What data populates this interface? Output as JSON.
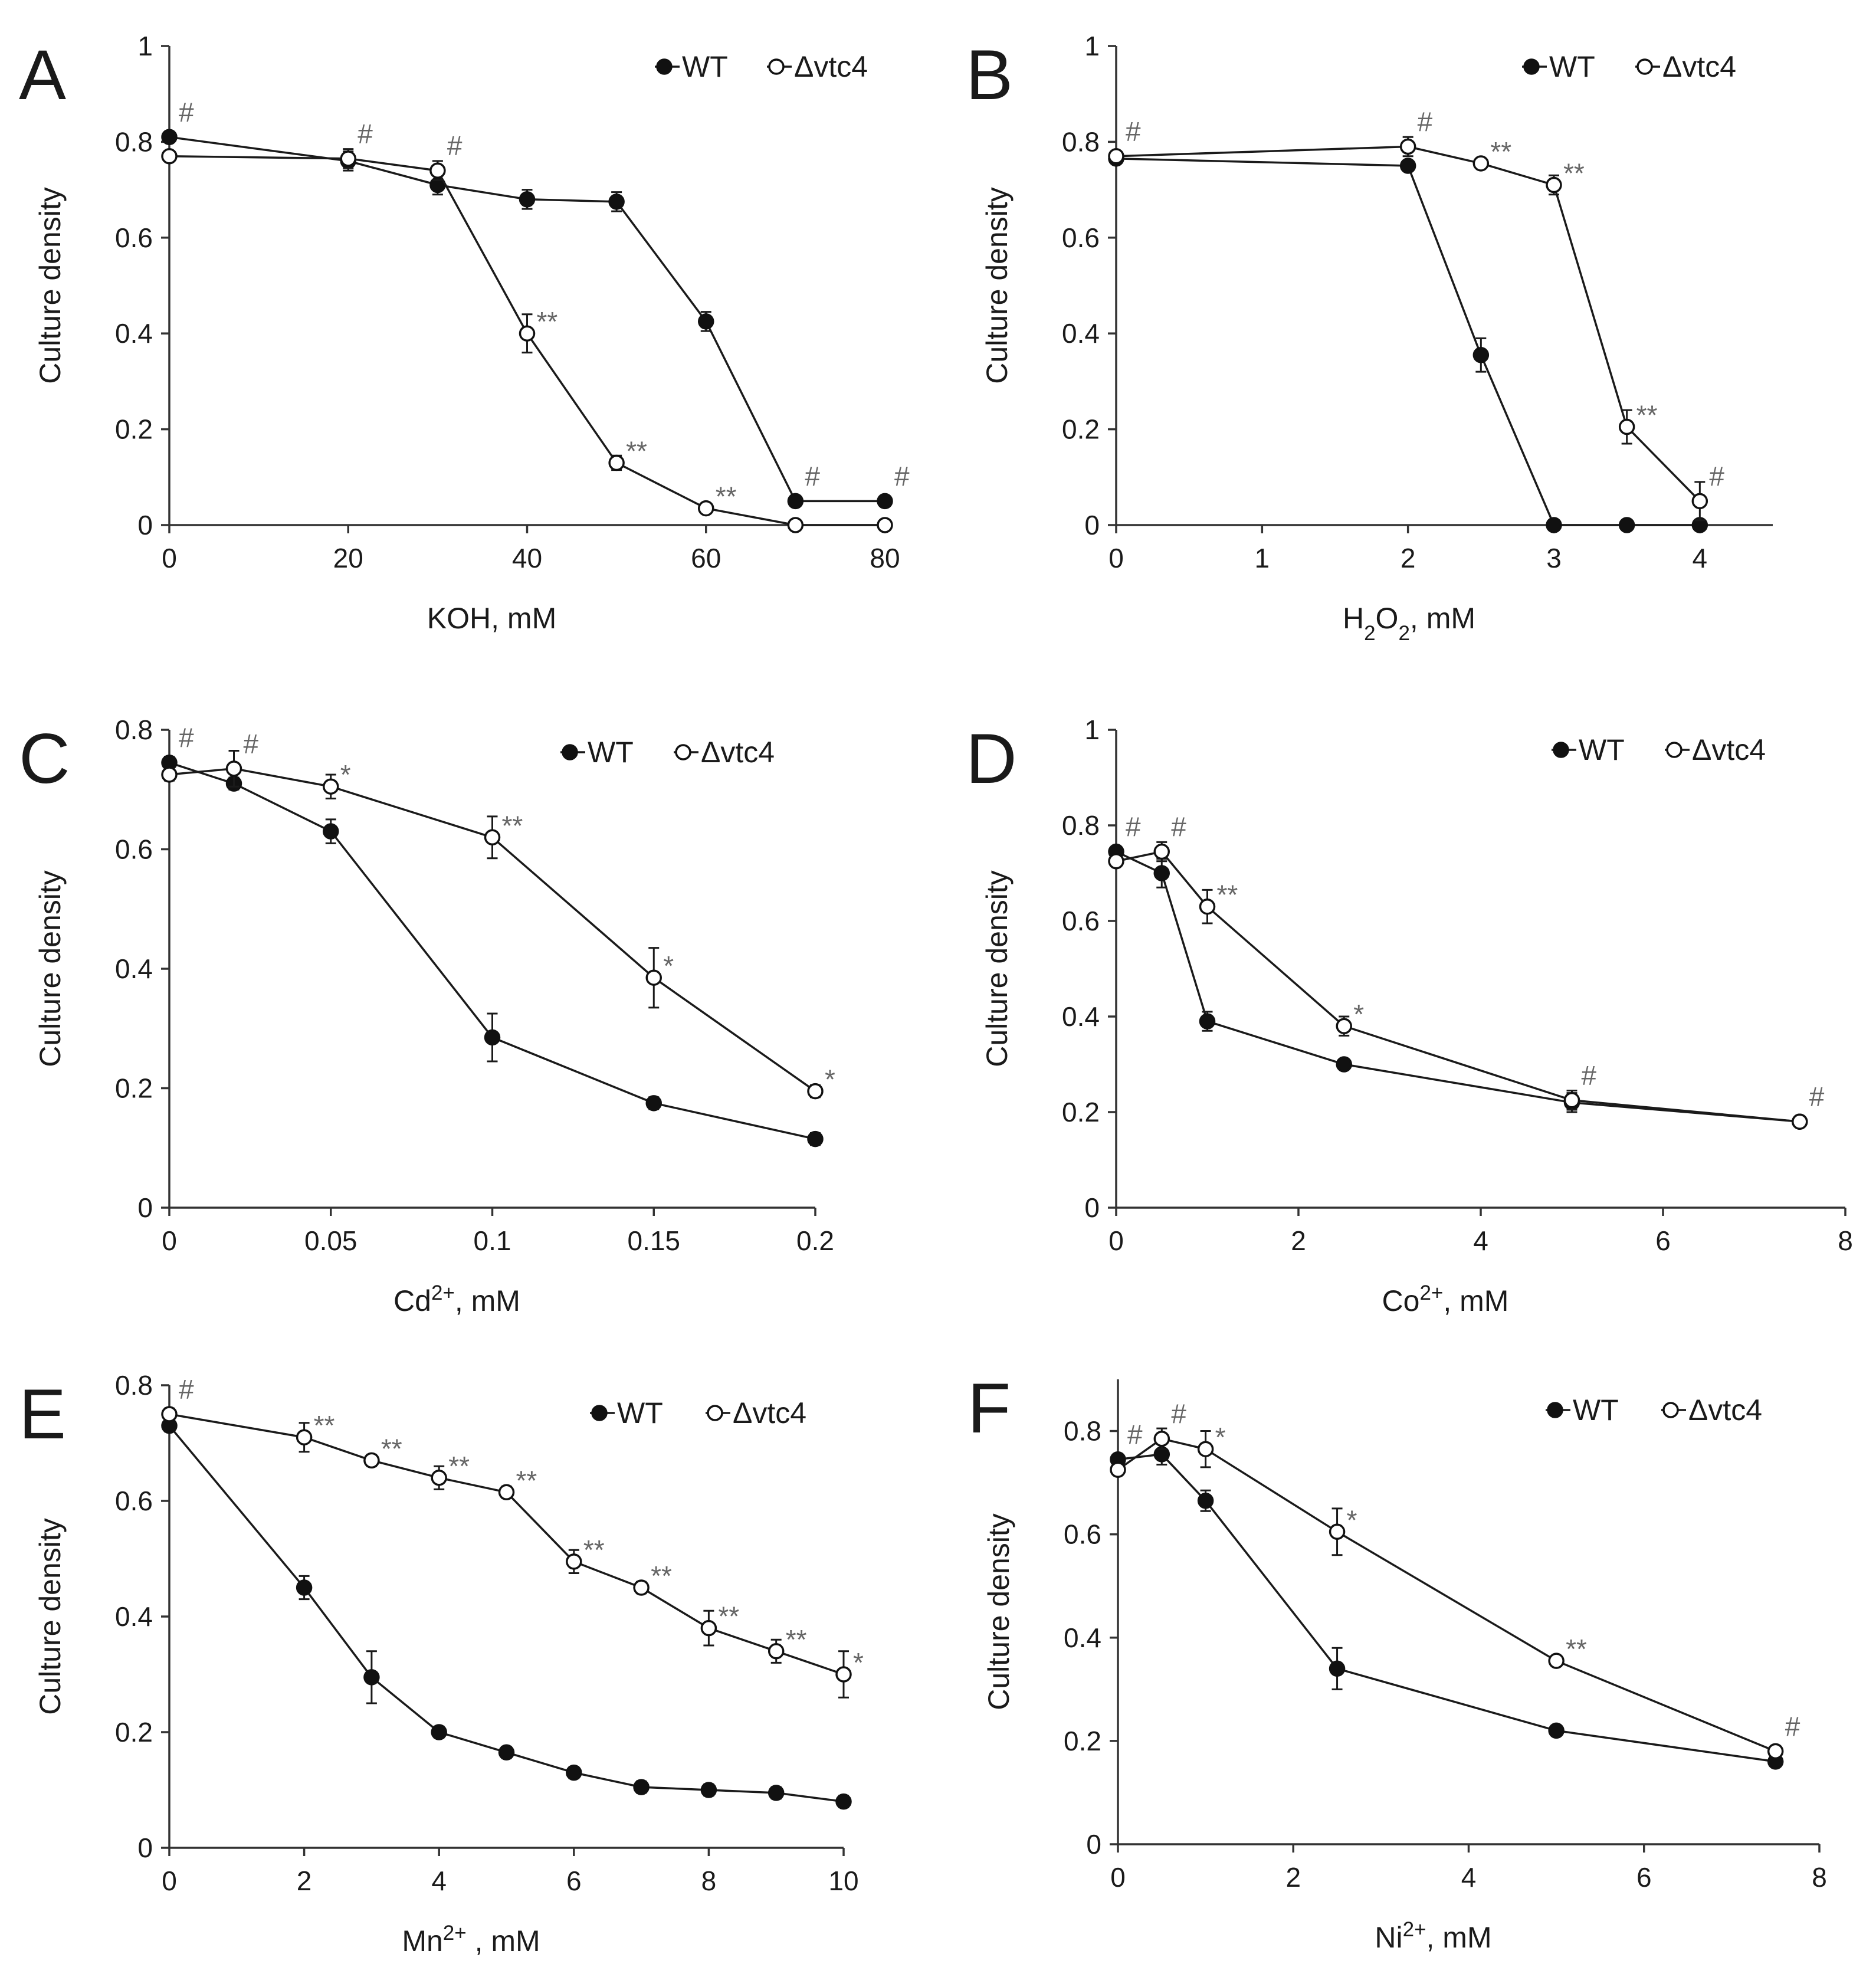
{
  "legend": {
    "wt": "WT",
    "mut": "Δvtc4"
  },
  "chart_data": [
    {
      "panel": "A",
      "type": "line",
      "xlabel": "KOH, mM",
      "ylabel": "Culture density",
      "xlim": [
        0,
        80
      ],
      "ylim": [
        0,
        1
      ],
      "xticks": [
        0,
        20,
        40,
        60,
        80
      ],
      "xtick_labels": [
        "0",
        "20",
        "40",
        "60",
        "80"
      ],
      "yticks": [
        0,
        0.2,
        0.4,
        0.6,
        0.8,
        1
      ],
      "ytick_labels": [
        "0",
        "0.2",
        "0.4",
        "0.6",
        "0.8",
        "1"
      ],
      "series": [
        {
          "name": "WT",
          "marker": "filled",
          "x": [
            0,
            20,
            30,
            40,
            50,
            60,
            70,
            80
          ],
          "y": [
            0.81,
            0.76,
            0.71,
            0.68,
            0.675,
            0.425,
            0.05,
            0.05
          ],
          "err": [
            0.01,
            0.02,
            0.02,
            0.02,
            0.02,
            0.02,
            0.01,
            0.01
          ]
        },
        {
          "name": "Δvtc4",
          "marker": "open",
          "x": [
            0,
            20,
            30,
            40,
            50,
            60,
            70,
            80
          ],
          "y": [
            0.77,
            0.765,
            0.74,
            0.4,
            0.13,
            0.035,
            0.0,
            0.0
          ],
          "err": [
            0.01,
            0.02,
            0.02,
            0.04,
            0.015,
            0.01,
            0.005,
            0.005
          ]
        }
      ],
      "annotations": [
        {
          "x": 0,
          "y": 0.81,
          "text": "#"
        },
        {
          "x": 20,
          "y": 0.765,
          "text": "#"
        },
        {
          "x": 30,
          "y": 0.74,
          "text": "#"
        },
        {
          "x": 40,
          "y": 0.4,
          "text": "**"
        },
        {
          "x": 50,
          "y": 0.13,
          "text": "**"
        },
        {
          "x": 60,
          "y": 0.035,
          "text": "**"
        },
        {
          "x": 70,
          "y": 0.05,
          "text": "#"
        },
        {
          "x": 80,
          "y": 0.05,
          "text": "#"
        }
      ]
    },
    {
      "panel": "B",
      "type": "line",
      "xlabel": "H₂O₂, mM",
      "ylabel": "Culture density",
      "xlim": [
        0,
        4.5
      ],
      "ylim": [
        0,
        1
      ],
      "xticks": [
        0,
        1,
        2,
        3,
        4
      ],
      "xtick_labels": [
        "0",
        "1",
        "2",
        "3",
        "4"
      ],
      "yticks": [
        0,
        0.2,
        0.4,
        0.6,
        0.8,
        1
      ],
      "ytick_labels": [
        "0",
        "0.2",
        "0.4",
        "0.6",
        "0.8",
        "1"
      ],
      "series": [
        {
          "name": "WT",
          "marker": "filled",
          "x": [
            0,
            2,
            2.5,
            3,
            3.5,
            4
          ],
          "y": [
            0.765,
            0.75,
            0.355,
            0.0,
            0.0,
            0.0
          ],
          "err": [
            0.01,
            0.01,
            0.035,
            0.0,
            0.0,
            0.0
          ]
        },
        {
          "name": "Δvtc4",
          "marker": "open",
          "x": [
            0,
            2,
            2.5,
            3,
            3.5,
            4
          ],
          "y": [
            0.77,
            0.79,
            0.755,
            0.71,
            0.205,
            0.05
          ],
          "err": [
            0.01,
            0.02,
            0.01,
            0.02,
            0.035,
            0.04
          ]
        }
      ],
      "annotations": [
        {
          "x": 0,
          "y": 0.77,
          "text": "#"
        },
        {
          "x": 2,
          "y": 0.79,
          "text": "#"
        },
        {
          "x": 2.5,
          "y": 0.755,
          "text": "**"
        },
        {
          "x": 3,
          "y": 0.71,
          "text": "**"
        },
        {
          "x": 3.5,
          "y": 0.205,
          "text": "**"
        },
        {
          "x": 4,
          "y": 0.05,
          "text": "#"
        }
      ]
    },
    {
      "panel": "C",
      "type": "line",
      "xlabel": "Cd²⁺, mM",
      "ylabel": "Culture density",
      "xlim": [
        0,
        0.2
      ],
      "ylim": [
        0,
        0.8
      ],
      "xticks": [
        0,
        0.05,
        0.1,
        0.15,
        0.2
      ],
      "xtick_labels": [
        "0",
        "0.05",
        "0.1",
        "0.15",
        "0.2"
      ],
      "yticks": [
        0,
        0.2,
        0.4,
        0.6,
        0.8
      ],
      "ytick_labels": [
        "0",
        "0.2",
        "0.4",
        "0.6",
        "0.8"
      ],
      "series": [
        {
          "name": "WT",
          "marker": "filled",
          "x": [
            0,
            0.02,
            0.05,
            0.1,
            0.15,
            0.2
          ],
          "y": [
            0.745,
            0.71,
            0.63,
            0.285,
            0.175,
            0.115
          ],
          "err": [
            0.01,
            0.01,
            0.02,
            0.04,
            0.01,
            0.01
          ]
        },
        {
          "name": "Δvtc4",
          "marker": "open",
          "x": [
            0,
            0.02,
            0.05,
            0.1,
            0.15,
            0.2
          ],
          "y": [
            0.725,
            0.735,
            0.705,
            0.62,
            0.385,
            0.195
          ],
          "err": [
            0.01,
            0.03,
            0.02,
            0.035,
            0.05,
            0.01
          ]
        }
      ],
      "annotations": [
        {
          "x": 0,
          "y": 0.745,
          "text": "#"
        },
        {
          "x": 0.02,
          "y": 0.735,
          "text": "#"
        },
        {
          "x": 0.05,
          "y": 0.705,
          "text": "*"
        },
        {
          "x": 0.1,
          "y": 0.62,
          "text": "**"
        },
        {
          "x": 0.15,
          "y": 0.385,
          "text": "*"
        },
        {
          "x": 0.2,
          "y": 0.195,
          "text": "*"
        }
      ]
    },
    {
      "panel": "D",
      "type": "line",
      "xlabel": "Co²⁺, mM",
      "ylabel": "Culture density",
      "xlim": [
        0,
        8
      ],
      "ylim": [
        0,
        1
      ],
      "xticks": [
        0,
        2,
        4,
        6,
        8
      ],
      "xtick_labels": [
        "0",
        "2",
        "4",
        "6",
        "8"
      ],
      "yticks": [
        0,
        0.2,
        0.4,
        0.6,
        0.8,
        1
      ],
      "ytick_labels": [
        "0",
        "0.2",
        "0.4",
        "0.6",
        "0.8",
        "1"
      ],
      "series": [
        {
          "name": "WT",
          "marker": "filled",
          "x": [
            0,
            0.5,
            1,
            2.5,
            5,
            7.5
          ],
          "y": [
            0.745,
            0.7,
            0.39,
            0.3,
            0.22,
            0.18
          ],
          "err": [
            0.01,
            0.03,
            0.02,
            0.01,
            0.02,
            0.01
          ]
        },
        {
          "name": "Δvtc4",
          "marker": "open",
          "x": [
            0,
            0.5,
            1,
            2.5,
            5,
            7.5
          ],
          "y": [
            0.725,
            0.745,
            0.63,
            0.38,
            0.225,
            0.18
          ],
          "err": [
            0.01,
            0.02,
            0.035,
            0.02,
            0.02,
            0.01
          ]
        }
      ],
      "annotations": [
        {
          "x": 0,
          "y": 0.745,
          "text": "#"
        },
        {
          "x": 0.5,
          "y": 0.745,
          "text": "#"
        },
        {
          "x": 1,
          "y": 0.63,
          "text": "**"
        },
        {
          "x": 2.5,
          "y": 0.38,
          "text": "*"
        },
        {
          "x": 5,
          "y": 0.225,
          "text": "#"
        },
        {
          "x": 7.5,
          "y": 0.18,
          "text": "#"
        }
      ]
    },
    {
      "panel": "E",
      "type": "line",
      "xlabel": "Mn²⁺ , mM",
      "ylabel": "Culture density",
      "xlim": [
        0,
        10
      ],
      "ylim": [
        0,
        0.8
      ],
      "xticks": [
        0,
        2,
        4,
        6,
        8,
        10
      ],
      "xtick_labels": [
        "0",
        "2",
        "4",
        "6",
        "8",
        "10"
      ],
      "yticks": [
        0,
        0.2,
        0.4,
        0.6,
        0.8
      ],
      "ytick_labels": [
        "0",
        "0.2",
        "0.4",
        "0.6",
        "0.8"
      ],
      "series": [
        {
          "name": "WT",
          "marker": "filled",
          "x": [
            0,
            2,
            3,
            4,
            5,
            6,
            7,
            8,
            9,
            10
          ],
          "y": [
            0.73,
            0.45,
            0.295,
            0.2,
            0.165,
            0.13,
            0.105,
            0.1,
            0.095,
            0.08
          ],
          "err": [
            0.01,
            0.02,
            0.045,
            0.01,
            0.01,
            0.01,
            0.01,
            0.01,
            0.01,
            0.01
          ]
        },
        {
          "name": "Δvtc4",
          "marker": "open",
          "x": [
            0,
            2,
            3,
            4,
            5,
            6,
            7,
            8,
            9,
            10
          ],
          "y": [
            0.75,
            0.71,
            0.67,
            0.64,
            0.615,
            0.495,
            0.45,
            0.38,
            0.34,
            0.3
          ],
          "err": [
            0.01,
            0.025,
            0.01,
            0.02,
            0.01,
            0.02,
            0.01,
            0.03,
            0.02,
            0.04
          ]
        }
      ],
      "annotations": [
        {
          "x": 0,
          "y": 0.75,
          "text": "#"
        },
        {
          "x": 2,
          "y": 0.71,
          "text": "**"
        },
        {
          "x": 3,
          "y": 0.67,
          "text": "**"
        },
        {
          "x": 4,
          "y": 0.64,
          "text": "**"
        },
        {
          "x": 5,
          "y": 0.615,
          "text": "**"
        },
        {
          "x": 6,
          "y": 0.495,
          "text": "**"
        },
        {
          "x": 7,
          "y": 0.45,
          "text": "**"
        },
        {
          "x": 8,
          "y": 0.38,
          "text": "**"
        },
        {
          "x": 9,
          "y": 0.34,
          "text": "**"
        },
        {
          "x": 10,
          "y": 0.3,
          "text": "*"
        }
      ]
    },
    {
      "panel": "F",
      "type": "line",
      "xlabel": "Ni²⁺, mM",
      "ylabel": "Culture density",
      "xlim": [
        0,
        8
      ],
      "ylim": [
        0,
        0.9
      ],
      "xticks": [
        0,
        2,
        4,
        6,
        8
      ],
      "xtick_labels": [
        "0",
        "2",
        "4",
        "6",
        "8"
      ],
      "yticks": [
        0,
        0.2,
        0.4,
        0.6,
        0.8
      ],
      "ytick_labels": [
        "0",
        "0.2",
        "0.4",
        "0.6",
        "0.8"
      ],
      "series": [
        {
          "name": "WT",
          "marker": "filled",
          "x": [
            0,
            0.5,
            1,
            2.5,
            5,
            7.5
          ],
          "y": [
            0.745,
            0.755,
            0.665,
            0.34,
            0.22,
            0.16
          ],
          "err": [
            0.01,
            0.02,
            0.02,
            0.04,
            0.01,
            0.01
          ]
        },
        {
          "name": "Δvtc4",
          "marker": "open",
          "x": [
            0,
            0.5,
            1,
            2.5,
            5,
            7.5
          ],
          "y": [
            0.725,
            0.785,
            0.765,
            0.605,
            0.355,
            0.18
          ],
          "err": [
            0.01,
            0.02,
            0.035,
            0.045,
            0.01,
            0.01
          ]
        }
      ],
      "annotations": [
        {
          "x": 0,
          "y": 0.745,
          "text": "#"
        },
        {
          "x": 0.5,
          "y": 0.785,
          "text": "#"
        },
        {
          "x": 1,
          "y": 0.765,
          "text": "*"
        },
        {
          "x": 2.5,
          "y": 0.605,
          "text": "*"
        },
        {
          "x": 5,
          "y": 0.355,
          "text": "**"
        },
        {
          "x": 7.5,
          "y": 0.18,
          "text": "#"
        }
      ]
    }
  ]
}
